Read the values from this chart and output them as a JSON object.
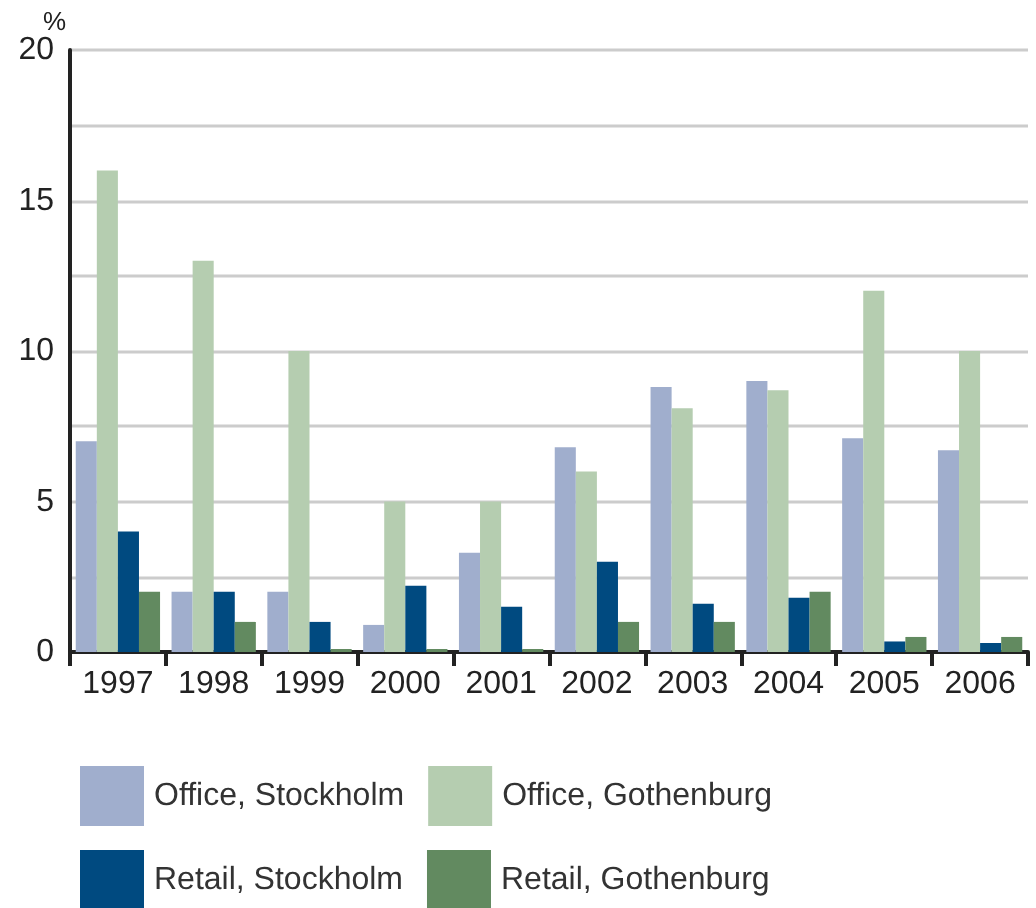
{
  "chart_data": {
    "type": "bar",
    "ylabel": "%",
    "categories": [
      "1997",
      "1998",
      "1999",
      "2000",
      "2001",
      "2002",
      "2003",
      "2004",
      "2005",
      "2006"
    ],
    "series": [
      {
        "name": "Office, Stockholm",
        "color": "#a0aecd",
        "values": [
          7,
          2,
          2,
          0.9,
          3.3,
          6.8,
          8.8,
          9.0,
          7.1,
          6.7
        ]
      },
      {
        "name": "Office, Gothenburg",
        "color": "#b5cdb0",
        "values": [
          16,
          13,
          10,
          5,
          5,
          6.0,
          8.1,
          8.7,
          12.0,
          10
        ]
      },
      {
        "name": "Retail, Stockholm",
        "color": "#004a80",
        "values": [
          4,
          2,
          1,
          2.2,
          1.5,
          3.0,
          1.6,
          1.8,
          0.35,
          0.3
        ]
      },
      {
        "name": "Retail, Gothenburg",
        "color": "#628a60",
        "values": [
          2,
          1,
          0.1,
          0.1,
          0.1,
          1,
          1,
          2.0,
          0.5,
          0.5
        ]
      }
    ],
    "ylim": [
      0,
      20
    ],
    "yticks": [
      0,
      {
        "value": 2.5,
        "label": null
      },
      5,
      {
        "value": 7.5,
        "label": null
      },
      10,
      {
        "value": 12.5,
        "label": null
      },
      15,
      {
        "value": 17.5,
        "label": null
      },
      20
    ],
    "grid": "y",
    "legend": "bottom"
  }
}
